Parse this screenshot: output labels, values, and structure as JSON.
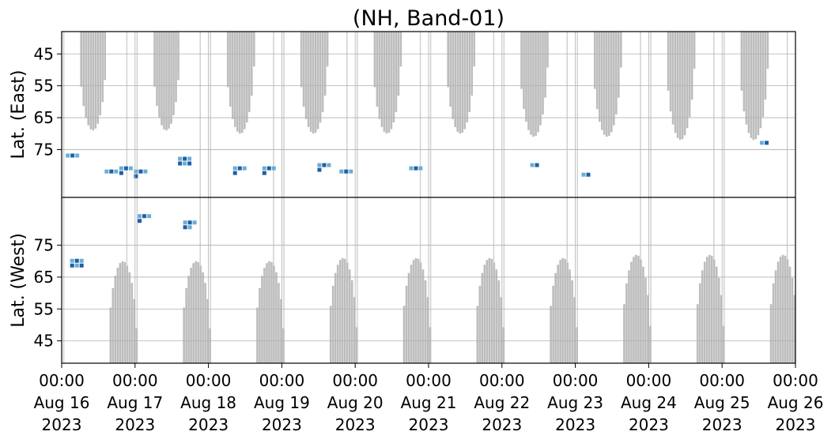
{
  "chart_data": {
    "type": "heatmap",
    "title": "(NH, Band-01)",
    "ylabel_top": "Lat. (East)",
    "ylabel_bottom": "Lat. (West)",
    "x_ticks": [
      {
        "time": "00:00",
        "date": "Aug 16",
        "year": "2023"
      },
      {
        "time": "00:00",
        "date": "Aug 17",
        "year": "2023"
      },
      {
        "time": "00:00",
        "date": "Aug 18",
        "year": "2023"
      },
      {
        "time": "00:00",
        "date": "Aug 19",
        "year": "2023"
      },
      {
        "time": "00:00",
        "date": "Aug 20",
        "year": "2023"
      },
      {
        "time": "00:00",
        "date": "Aug 21",
        "year": "2023"
      },
      {
        "time": "00:00",
        "date": "Aug 22",
        "year": "2023"
      },
      {
        "time": "00:00",
        "date": "Aug 23",
        "year": "2023"
      },
      {
        "time": "00:00",
        "date": "Aug 24",
        "year": "2023"
      },
      {
        "time": "00:00",
        "date": "Aug 25",
        "year": "2023"
      },
      {
        "time": "00:00",
        "date": "Aug 26",
        "year": "2023"
      }
    ],
    "y_ticks_top": [
      "45",
      "55",
      "65",
      "75"
    ],
    "y_ticks_bottom": [
      "75",
      "65",
      "55",
      "45"
    ],
    "ylim": [
      38,
      90
    ],
    "grid": true,
    "colors": {
      "no_data": "#bdbdbd",
      "detection_light": "#6aaed6",
      "detection_dark": "#1f5fa5",
      "grid": "#b0b0b0"
    },
    "gray_lobes_east": [
      {
        "start_day": 0.22,
        "end_day": 0.6,
        "min_lat": 69
      },
      {
        "start_day": 1.22,
        "end_day": 1.6,
        "min_lat": 69
      },
      {
        "start_day": 2.22,
        "end_day": 2.62,
        "min_lat": 70
      },
      {
        "start_day": 3.22,
        "end_day": 3.62,
        "min_lat": 70
      },
      {
        "start_day": 4.22,
        "end_day": 4.62,
        "min_lat": 70
      },
      {
        "start_day": 5.22,
        "end_day": 5.62,
        "min_lat": 70
      },
      {
        "start_day": 6.22,
        "end_day": 6.62,
        "min_lat": 71
      },
      {
        "start_day": 7.22,
        "end_day": 7.62,
        "min_lat": 71
      },
      {
        "start_day": 8.22,
        "end_day": 8.62,
        "min_lat": 72
      },
      {
        "start_day": 9.22,
        "end_day": 9.62,
        "min_lat": 72
      }
    ],
    "gray_lobes_west": [
      {
        "start_day": 0.62,
        "end_day": 1.02,
        "max_lat": 70
      },
      {
        "start_day": 1.62,
        "end_day": 2.02,
        "max_lat": 70
      },
      {
        "start_day": 2.62,
        "end_day": 3.02,
        "max_lat": 70
      },
      {
        "start_day": 3.62,
        "end_day": 4.02,
        "max_lat": 71
      },
      {
        "start_day": 4.62,
        "end_day": 5.02,
        "max_lat": 71
      },
      {
        "start_day": 5.62,
        "end_day": 6.02,
        "max_lat": 71
      },
      {
        "start_day": 6.62,
        "end_day": 7.02,
        "max_lat": 71
      },
      {
        "start_day": 7.62,
        "end_day": 8.02,
        "max_lat": 72
      },
      {
        "start_day": 8.62,
        "end_day": 9.02,
        "max_lat": 72
      },
      {
        "start_day": 9.62,
        "end_day": 10.02,
        "max_lat": 72
      }
    ],
    "detections_east": [
      {
        "day": 0.12,
        "lat": 77,
        "n": 3
      },
      {
        "day": 0.65,
        "lat": 82,
        "n": 3
      },
      {
        "day": 0.85,
        "lat": 81,
        "n": 4
      },
      {
        "day": 1.05,
        "lat": 82,
        "n": 4
      },
      {
        "day": 1.65,
        "lat": 78,
        "n": 6
      },
      {
        "day": 2.4,
        "lat": 81,
        "n": 4
      },
      {
        "day": 2.8,
        "lat": 81,
        "n": 4
      },
      {
        "day": 3.55,
        "lat": 80,
        "n": 4
      },
      {
        "day": 3.85,
        "lat": 82,
        "n": 3
      },
      {
        "day": 4.8,
        "lat": 81,
        "n": 3
      },
      {
        "day": 6.45,
        "lat": 80,
        "n": 2
      },
      {
        "day": 7.15,
        "lat": 83,
        "n": 2
      },
      {
        "day": 9.58,
        "lat": 73,
        "n": 2
      }
    ],
    "detections_west": [
      {
        "day": 0.18,
        "lat": 70,
        "n": 6
      },
      {
        "day": 1.1,
        "lat": 84,
        "n": 4
      },
      {
        "day": 1.72,
        "lat": 82,
        "n": 5
      }
    ]
  }
}
